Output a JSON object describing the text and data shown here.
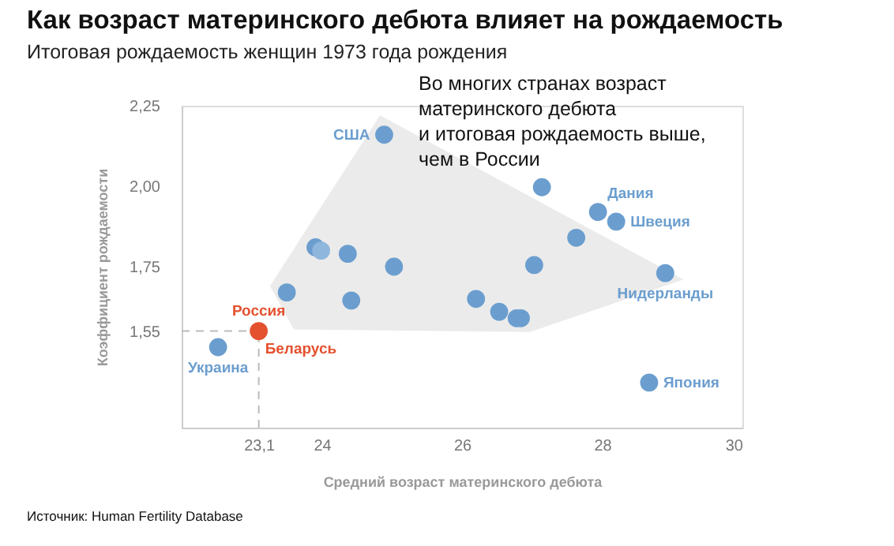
{
  "chart_data": {
    "type": "scatter",
    "title": "Как возраст материнского дебюта влияет на рождаемость",
    "subtitle": "Итоговая рождаемость женщин 1973 года рождения",
    "xlabel": "Средний возраст материнского дебюта",
    "ylabel": "Коэффициент рождаемости",
    "series": [
      {
        "type": "area",
        "color": "#ebebeb",
        "x": [
          23.26,
          24.83,
          29.16,
          26.97,
          23.6
        ],
        "values": [
          1.69,
          2.22,
          1.71,
          1.547,
          1.555
        ]
      },
      {
        "x": [
          22.52,
          23.1,
          23.5,
          23.91,
          23.99,
          24.37,
          24.42,
          25.03,
          24.89,
          26.2,
          26.53,
          26.78,
          26.84,
          27.03,
          27.14,
          27.63,
          27.94,
          28.2,
          28.9,
          28.67
        ],
        "values": [
          1.5,
          1.55,
          1.67,
          1.81,
          1.8,
          1.79,
          1.645,
          1.75,
          2.16,
          1.65,
          1.61,
          1.59,
          1.59,
          1.755,
          1.997,
          1.84,
          1.92,
          1.89,
          1.73,
          1.39
        ],
        "colors": [
          "#6b9ecf",
          "#e4512f",
          "#6b9ecf",
          "#6b9ecf",
          "#8fb6dd",
          "#6b9ecf",
          "#6b9ecf",
          "#6b9ecf",
          "#6b9ecf",
          "#6b9ecf",
          "#6b9ecf",
          "#6b9ecf",
          "#6b9ecf",
          "#6b9ecf",
          "#6b9ecf",
          "#6b9ecf",
          "#6b9ecf",
          "#6b9ecf",
          "#6b9ecf",
          "#6b9ecf"
        ]
      }
    ],
    "xlim": [
      22,
      30
    ],
    "ylim": [
      1.25,
      2.25
    ],
    "xticks": [
      {
        "value": 23.1,
        "label": "23,1"
      },
      24,
      26,
      28,
      30
    ],
    "yticks": [
      {
        "value": 1.55,
        "label": "1,55"
      },
      {
        "value": 1.75,
        "label": "1,75"
      },
      {
        "value": 2.0,
        "label": "2,00"
      },
      {
        "value": 2.25,
        "label": "2,25"
      }
    ],
    "grid": false,
    "ref_lines": [
      {
        "axis": "y",
        "value": 1.55,
        "color": "#bbbbbb",
        "line_style": "dashed"
      },
      {
        "axis": "x",
        "value": 23.1,
        "color": "#bbbbbb",
        "line_style": "dashed"
      }
    ],
    "annotations": [
      "Во многих странах возраст\nматеринского дебюта\nи итоговая рождаемость выше,\nчем в России",
      "Источник: Human Fertility Database",
      {
        "text": "США",
        "x": 24.89,
        "y": 2.16
      },
      {
        "text": "Россия",
        "x": 23.1,
        "y": 1.55
      },
      {
        "text": "Беларусь",
        "x": 23.1,
        "y": 1.55
      },
      {
        "text": "Украина",
        "x": 22.52,
        "y": 1.5
      },
      {
        "text": "Дания",
        "x": 27.94,
        "y": 1.92
      },
      {
        "text": "Швеция",
        "x": 28.2,
        "y": 1.89
      },
      {
        "text": "Нидерланды",
        "x": 28.9,
        "y": 1.73
      },
      {
        "text": "Япония",
        "x": 28.67,
        "y": 1.39
      }
    ]
  }
}
